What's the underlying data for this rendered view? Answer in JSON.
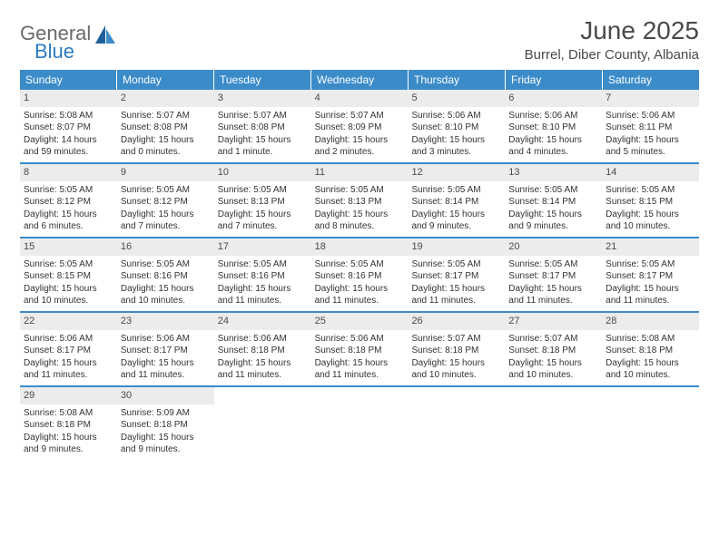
{
  "logo": {
    "textA": "General",
    "textB": "Blue"
  },
  "title": "June 2025",
  "location": "Burrel, Diber County, Albania",
  "colors": {
    "header_bg": "#3b8bc9",
    "header_text": "#ffffff",
    "daynum_bg": "#ececec",
    "body_text": "#333333",
    "logo_gray": "#6a6a6a",
    "logo_blue": "#2b7bbf",
    "week_divider": "#3b8bc9",
    "page_bg": "#ffffff"
  },
  "typography": {
    "title_fontsize": 28,
    "location_fontsize": 15,
    "dow_fontsize": 12,
    "daynum_fontsize": 11,
    "body_fontsize": 10
  },
  "days_of_week": [
    "Sunday",
    "Monday",
    "Tuesday",
    "Wednesday",
    "Thursday",
    "Friday",
    "Saturday"
  ],
  "weeks": [
    [
      {
        "n": "1",
        "sunrise": "Sunrise: 5:08 AM",
        "sunset": "Sunset: 8:07 PM",
        "d1": "Daylight: 14 hours",
        "d2": "and 59 minutes."
      },
      {
        "n": "2",
        "sunrise": "Sunrise: 5:07 AM",
        "sunset": "Sunset: 8:08 PM",
        "d1": "Daylight: 15 hours",
        "d2": "and 0 minutes."
      },
      {
        "n": "3",
        "sunrise": "Sunrise: 5:07 AM",
        "sunset": "Sunset: 8:08 PM",
        "d1": "Daylight: 15 hours",
        "d2": "and 1 minute."
      },
      {
        "n": "4",
        "sunrise": "Sunrise: 5:07 AM",
        "sunset": "Sunset: 8:09 PM",
        "d1": "Daylight: 15 hours",
        "d2": "and 2 minutes."
      },
      {
        "n": "5",
        "sunrise": "Sunrise: 5:06 AM",
        "sunset": "Sunset: 8:10 PM",
        "d1": "Daylight: 15 hours",
        "d2": "and 3 minutes."
      },
      {
        "n": "6",
        "sunrise": "Sunrise: 5:06 AM",
        "sunset": "Sunset: 8:10 PM",
        "d1": "Daylight: 15 hours",
        "d2": "and 4 minutes."
      },
      {
        "n": "7",
        "sunrise": "Sunrise: 5:06 AM",
        "sunset": "Sunset: 8:11 PM",
        "d1": "Daylight: 15 hours",
        "d2": "and 5 minutes."
      }
    ],
    [
      {
        "n": "8",
        "sunrise": "Sunrise: 5:05 AM",
        "sunset": "Sunset: 8:12 PM",
        "d1": "Daylight: 15 hours",
        "d2": "and 6 minutes."
      },
      {
        "n": "9",
        "sunrise": "Sunrise: 5:05 AM",
        "sunset": "Sunset: 8:12 PM",
        "d1": "Daylight: 15 hours",
        "d2": "and 7 minutes."
      },
      {
        "n": "10",
        "sunrise": "Sunrise: 5:05 AM",
        "sunset": "Sunset: 8:13 PM",
        "d1": "Daylight: 15 hours",
        "d2": "and 7 minutes."
      },
      {
        "n": "11",
        "sunrise": "Sunrise: 5:05 AM",
        "sunset": "Sunset: 8:13 PM",
        "d1": "Daylight: 15 hours",
        "d2": "and 8 minutes."
      },
      {
        "n": "12",
        "sunrise": "Sunrise: 5:05 AM",
        "sunset": "Sunset: 8:14 PM",
        "d1": "Daylight: 15 hours",
        "d2": "and 9 minutes."
      },
      {
        "n": "13",
        "sunrise": "Sunrise: 5:05 AM",
        "sunset": "Sunset: 8:14 PM",
        "d1": "Daylight: 15 hours",
        "d2": "and 9 minutes."
      },
      {
        "n": "14",
        "sunrise": "Sunrise: 5:05 AM",
        "sunset": "Sunset: 8:15 PM",
        "d1": "Daylight: 15 hours",
        "d2": "and 10 minutes."
      }
    ],
    [
      {
        "n": "15",
        "sunrise": "Sunrise: 5:05 AM",
        "sunset": "Sunset: 8:15 PM",
        "d1": "Daylight: 15 hours",
        "d2": "and 10 minutes."
      },
      {
        "n": "16",
        "sunrise": "Sunrise: 5:05 AM",
        "sunset": "Sunset: 8:16 PM",
        "d1": "Daylight: 15 hours",
        "d2": "and 10 minutes."
      },
      {
        "n": "17",
        "sunrise": "Sunrise: 5:05 AM",
        "sunset": "Sunset: 8:16 PM",
        "d1": "Daylight: 15 hours",
        "d2": "and 11 minutes."
      },
      {
        "n": "18",
        "sunrise": "Sunrise: 5:05 AM",
        "sunset": "Sunset: 8:16 PM",
        "d1": "Daylight: 15 hours",
        "d2": "and 11 minutes."
      },
      {
        "n": "19",
        "sunrise": "Sunrise: 5:05 AM",
        "sunset": "Sunset: 8:17 PM",
        "d1": "Daylight: 15 hours",
        "d2": "and 11 minutes."
      },
      {
        "n": "20",
        "sunrise": "Sunrise: 5:05 AM",
        "sunset": "Sunset: 8:17 PM",
        "d1": "Daylight: 15 hours",
        "d2": "and 11 minutes."
      },
      {
        "n": "21",
        "sunrise": "Sunrise: 5:05 AM",
        "sunset": "Sunset: 8:17 PM",
        "d1": "Daylight: 15 hours",
        "d2": "and 11 minutes."
      }
    ],
    [
      {
        "n": "22",
        "sunrise": "Sunrise: 5:06 AM",
        "sunset": "Sunset: 8:17 PM",
        "d1": "Daylight: 15 hours",
        "d2": "and 11 minutes."
      },
      {
        "n": "23",
        "sunrise": "Sunrise: 5:06 AM",
        "sunset": "Sunset: 8:17 PM",
        "d1": "Daylight: 15 hours",
        "d2": "and 11 minutes."
      },
      {
        "n": "24",
        "sunrise": "Sunrise: 5:06 AM",
        "sunset": "Sunset: 8:18 PM",
        "d1": "Daylight: 15 hours",
        "d2": "and 11 minutes."
      },
      {
        "n": "25",
        "sunrise": "Sunrise: 5:06 AM",
        "sunset": "Sunset: 8:18 PM",
        "d1": "Daylight: 15 hours",
        "d2": "and 11 minutes."
      },
      {
        "n": "26",
        "sunrise": "Sunrise: 5:07 AM",
        "sunset": "Sunset: 8:18 PM",
        "d1": "Daylight: 15 hours",
        "d2": "and 10 minutes."
      },
      {
        "n": "27",
        "sunrise": "Sunrise: 5:07 AM",
        "sunset": "Sunset: 8:18 PM",
        "d1": "Daylight: 15 hours",
        "d2": "and 10 minutes."
      },
      {
        "n": "28",
        "sunrise": "Sunrise: 5:08 AM",
        "sunset": "Sunset: 8:18 PM",
        "d1": "Daylight: 15 hours",
        "d2": "and 10 minutes."
      }
    ],
    [
      {
        "n": "29",
        "sunrise": "Sunrise: 5:08 AM",
        "sunset": "Sunset: 8:18 PM",
        "d1": "Daylight: 15 hours",
        "d2": "and 9 minutes."
      },
      {
        "n": "30",
        "sunrise": "Sunrise: 5:09 AM",
        "sunset": "Sunset: 8:18 PM",
        "d1": "Daylight: 15 hours",
        "d2": "and 9 minutes."
      },
      {
        "empty": true
      },
      {
        "empty": true
      },
      {
        "empty": true
      },
      {
        "empty": true
      },
      {
        "empty": true
      }
    ]
  ]
}
